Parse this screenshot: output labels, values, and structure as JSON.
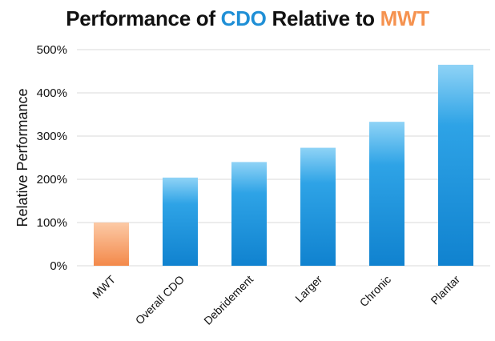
{
  "chart_data": {
    "type": "bar",
    "title": {
      "prefix": "Performance of ",
      "highlight_1": "CDO",
      "middle": " Relative to ",
      "highlight_2": "MWT"
    },
    "xlabel": "",
    "ylabel": "Relative Performance",
    "categories": [
      "MWT",
      "Overall CDO",
      "Debridement",
      "Larger",
      "Chronic",
      "Plantar"
    ],
    "values": [
      100,
      204,
      240,
      273,
      333,
      465
    ],
    "ylim": [
      0,
      500
    ],
    "yticks": [
      0,
      100,
      200,
      300,
      400,
      500
    ],
    "ytick_labels": [
      "0%",
      "100%",
      "200%",
      "300%",
      "400%",
      "500%"
    ],
    "grid": true,
    "legend": "none",
    "colors": {
      "title_cdo": "#1f8fd6",
      "title_mwt": "#f5924f",
      "bar_blue_top": "#8fd3f6",
      "bar_blue_mid": "#2ea3e6",
      "bar_blue_bottom": "#1082cf",
      "bar_orange_top": "#fccaa6",
      "bar_orange_bottom": "#f3894a",
      "grid": "#d9d9d9"
    },
    "highlight_category": "MWT"
  }
}
